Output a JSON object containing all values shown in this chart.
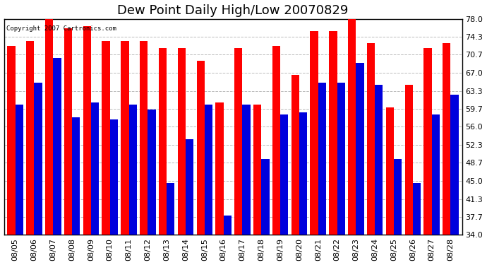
{
  "title": "Dew Point Daily High/Low 20070829",
  "copyright": "Copyright 2007 Cartronics.com",
  "dates": [
    "08/05",
    "08/06",
    "08/07",
    "08/08",
    "08/09",
    "08/10",
    "08/11",
    "08/12",
    "08/13",
    "08/14",
    "08/15",
    "08/16",
    "08/17",
    "08/18",
    "08/19",
    "08/20",
    "08/21",
    "08/22",
    "08/23",
    "08/24",
    "08/25",
    "08/26",
    "08/27",
    "08/28"
  ],
  "highs": [
    72.5,
    73.5,
    79.0,
    76.0,
    76.5,
    73.5,
    73.5,
    73.5,
    72.0,
    72.0,
    69.5,
    61.0,
    72.0,
    60.5,
    72.5,
    66.5,
    75.5,
    75.5,
    78.0,
    73.0,
    60.0,
    64.5,
    72.0,
    73.0
  ],
  "lows": [
    60.5,
    65.0,
    70.0,
    58.0,
    61.0,
    57.5,
    60.5,
    59.5,
    44.5,
    53.5,
    60.5,
    38.0,
    60.5,
    49.5,
    58.5,
    59.0,
    65.0,
    65.0,
    69.0,
    64.5,
    49.5,
    44.5,
    58.5,
    62.5
  ],
  "high_color": "#ff0000",
  "low_color": "#0000dd",
  "bg_color": "#ffffff",
  "grid_color": "#bbbbbb",
  "ymin": 34.0,
  "ymax": 78.0,
  "yticks": [
    34.0,
    37.7,
    41.3,
    45.0,
    48.7,
    52.3,
    56.0,
    59.7,
    63.3,
    67.0,
    70.7,
    74.3,
    78.0
  ],
  "title_fontsize": 13,
  "tick_fontsize": 8,
  "bar_width": 0.42,
  "figwidth": 6.9,
  "figheight": 3.75,
  "dpi": 100
}
